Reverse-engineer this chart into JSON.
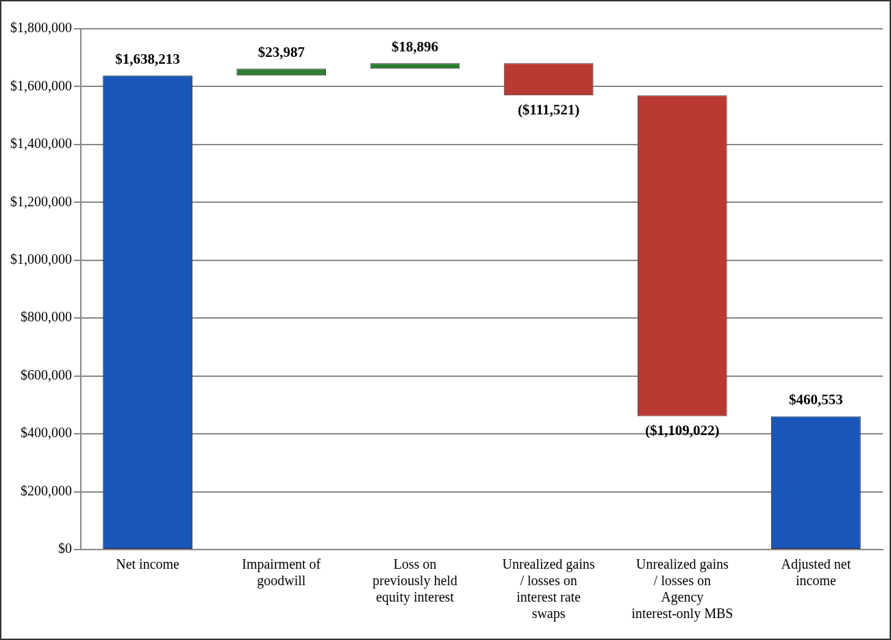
{
  "chart_data": {
    "type": "bar",
    "categories": [
      "Net income",
      "Impairment of goodwill",
      "Loss on previously held equity interest",
      "Unrealized gains / losses on interest rate swaps",
      "Unrealized gains / losses on Agency interest-only MBS",
      "Adjusted net income"
    ],
    "values": [
      1638213,
      23987,
      18896,
      -111521,
      -1109022,
      460553
    ],
    "base": [
      0,
      1638213,
      1662200,
      1681096,
      1569575,
      0
    ],
    "colors": [
      "#1a56b8",
      "#2e7d32",
      "#2e7d32",
      "#b83a32",
      "#b83a32",
      "#1a56b8"
    ],
    "value_labels": [
      "$1,638,213",
      "$23,987",
      "$18,896",
      "($111,521)",
      "($1,109,022)",
      "$460,553"
    ],
    "ylim": [
      0,
      1800000
    ],
    "yticks": [
      {
        "value": 0,
        "label": "$0"
      },
      {
        "value": 200000,
        "label": "$200,000"
      },
      {
        "value": 400000,
        "label": "$400,000"
      },
      {
        "value": 600000,
        "label": "$600,000"
      },
      {
        "value": 800000,
        "label": "$800,000"
      },
      {
        "value": 1000000,
        "label": "$1,000,000"
      },
      {
        "value": 1200000,
        "label": "$1,200,000"
      },
      {
        "value": 1400000,
        "label": "$1,400,000"
      },
      {
        "value": 1600000,
        "label": "$1,600,000"
      },
      {
        "value": 1800000,
        "label": "$1,800,000"
      }
    ],
    "grid": "y"
  }
}
